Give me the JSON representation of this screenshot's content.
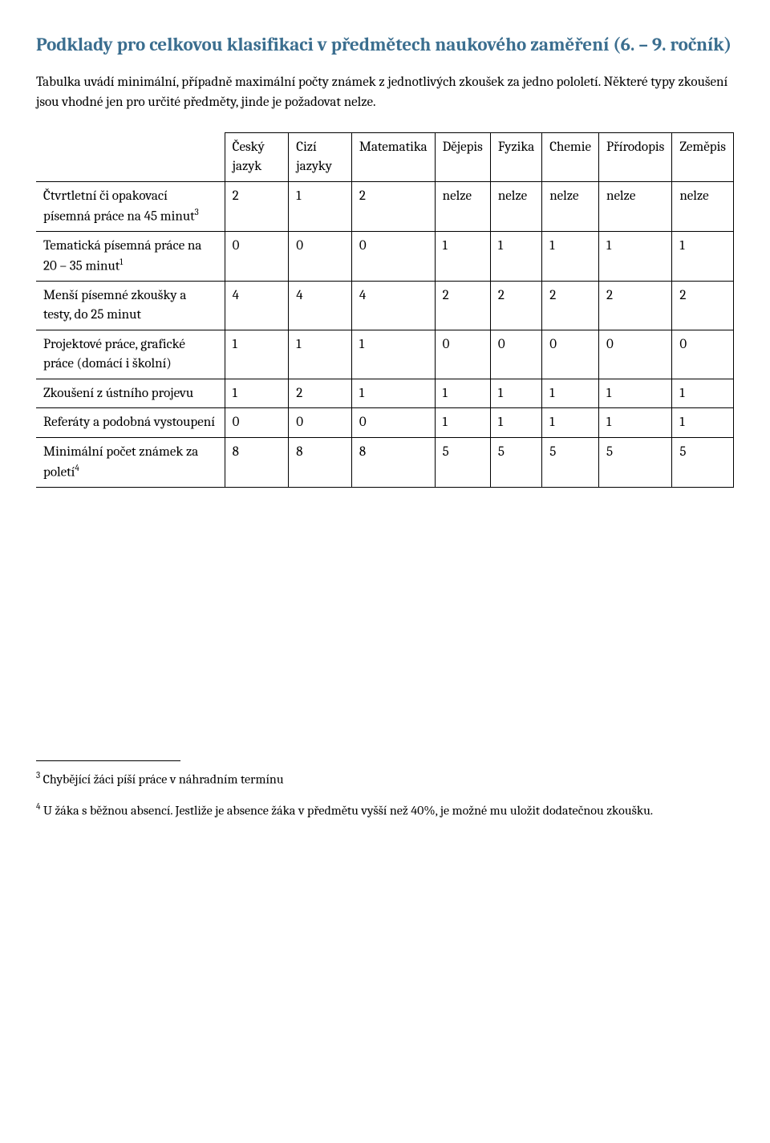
{
  "title": "Podklady pro celkovou klasifikaci v předmětech naukového zaměření (6. – 9. ročník)",
  "intro": "Tabulka uvádí minimální, případně maximální počty známek z jednotlivých zkoušek za jedno pololetí. Některé typy zkoušení jsou vhodné jen pro určité předměty, jinde je požadovat nelze.",
  "table": {
    "columns": [
      "Český jazyk",
      "Cizí jazyky",
      "Matematika",
      "Dějepis",
      "Fyzika",
      "Chemie",
      "Přírodopis",
      "Zeměpis"
    ],
    "rows": [
      {
        "label": "Čtvrtletní či opakovací písemná práce na 45 minut",
        "sup": "3",
        "values": [
          "2",
          "1",
          "2",
          "nelze",
          "nelze",
          "nelze",
          "nelze",
          "nelze"
        ]
      },
      {
        "label": "Tematická písemná práce na 20 – 35 minut",
        "sup": "1",
        "values": [
          "0",
          "0",
          "0",
          "1",
          "1",
          "1",
          "1",
          "1"
        ]
      },
      {
        "label": "Menší písemné zkoušky a testy, do 25 minut",
        "sup": "",
        "values": [
          "4",
          "4",
          "4",
          "2",
          "2",
          "2",
          "2",
          "2"
        ]
      },
      {
        "label": "Projektové práce, grafické práce (domácí i školní)",
        "sup": "",
        "values": [
          "1",
          "1",
          "1",
          "0",
          "0",
          "0",
          "0",
          "0"
        ]
      },
      {
        "label": "Zkoušení z ústního projevu",
        "sup": "",
        "values": [
          "1",
          "2",
          "1",
          "1",
          "1",
          "1",
          "1",
          "1"
        ]
      },
      {
        "label": "Referáty a podobná vystoupení",
        "sup": "",
        "values": [
          "0",
          "0",
          "0",
          "1",
          "1",
          "1",
          "1",
          "1"
        ]
      },
      {
        "label": "Minimální počet známek za poletí",
        "sup": "4",
        "values": [
          "8",
          "8",
          "8",
          "5",
          "5",
          "5",
          "5",
          "5"
        ]
      }
    ]
  },
  "footnotes": [
    {
      "num": "3",
      "text": "Chybějící žáci píší práce v náhradním termínu"
    },
    {
      "num": "4",
      "text": "U žáka s běžnou absencí. Jestliže je absence žáka v předmětu vyšší než 40%, je možné mu uložit dodatečnou zkoušku."
    }
  ]
}
